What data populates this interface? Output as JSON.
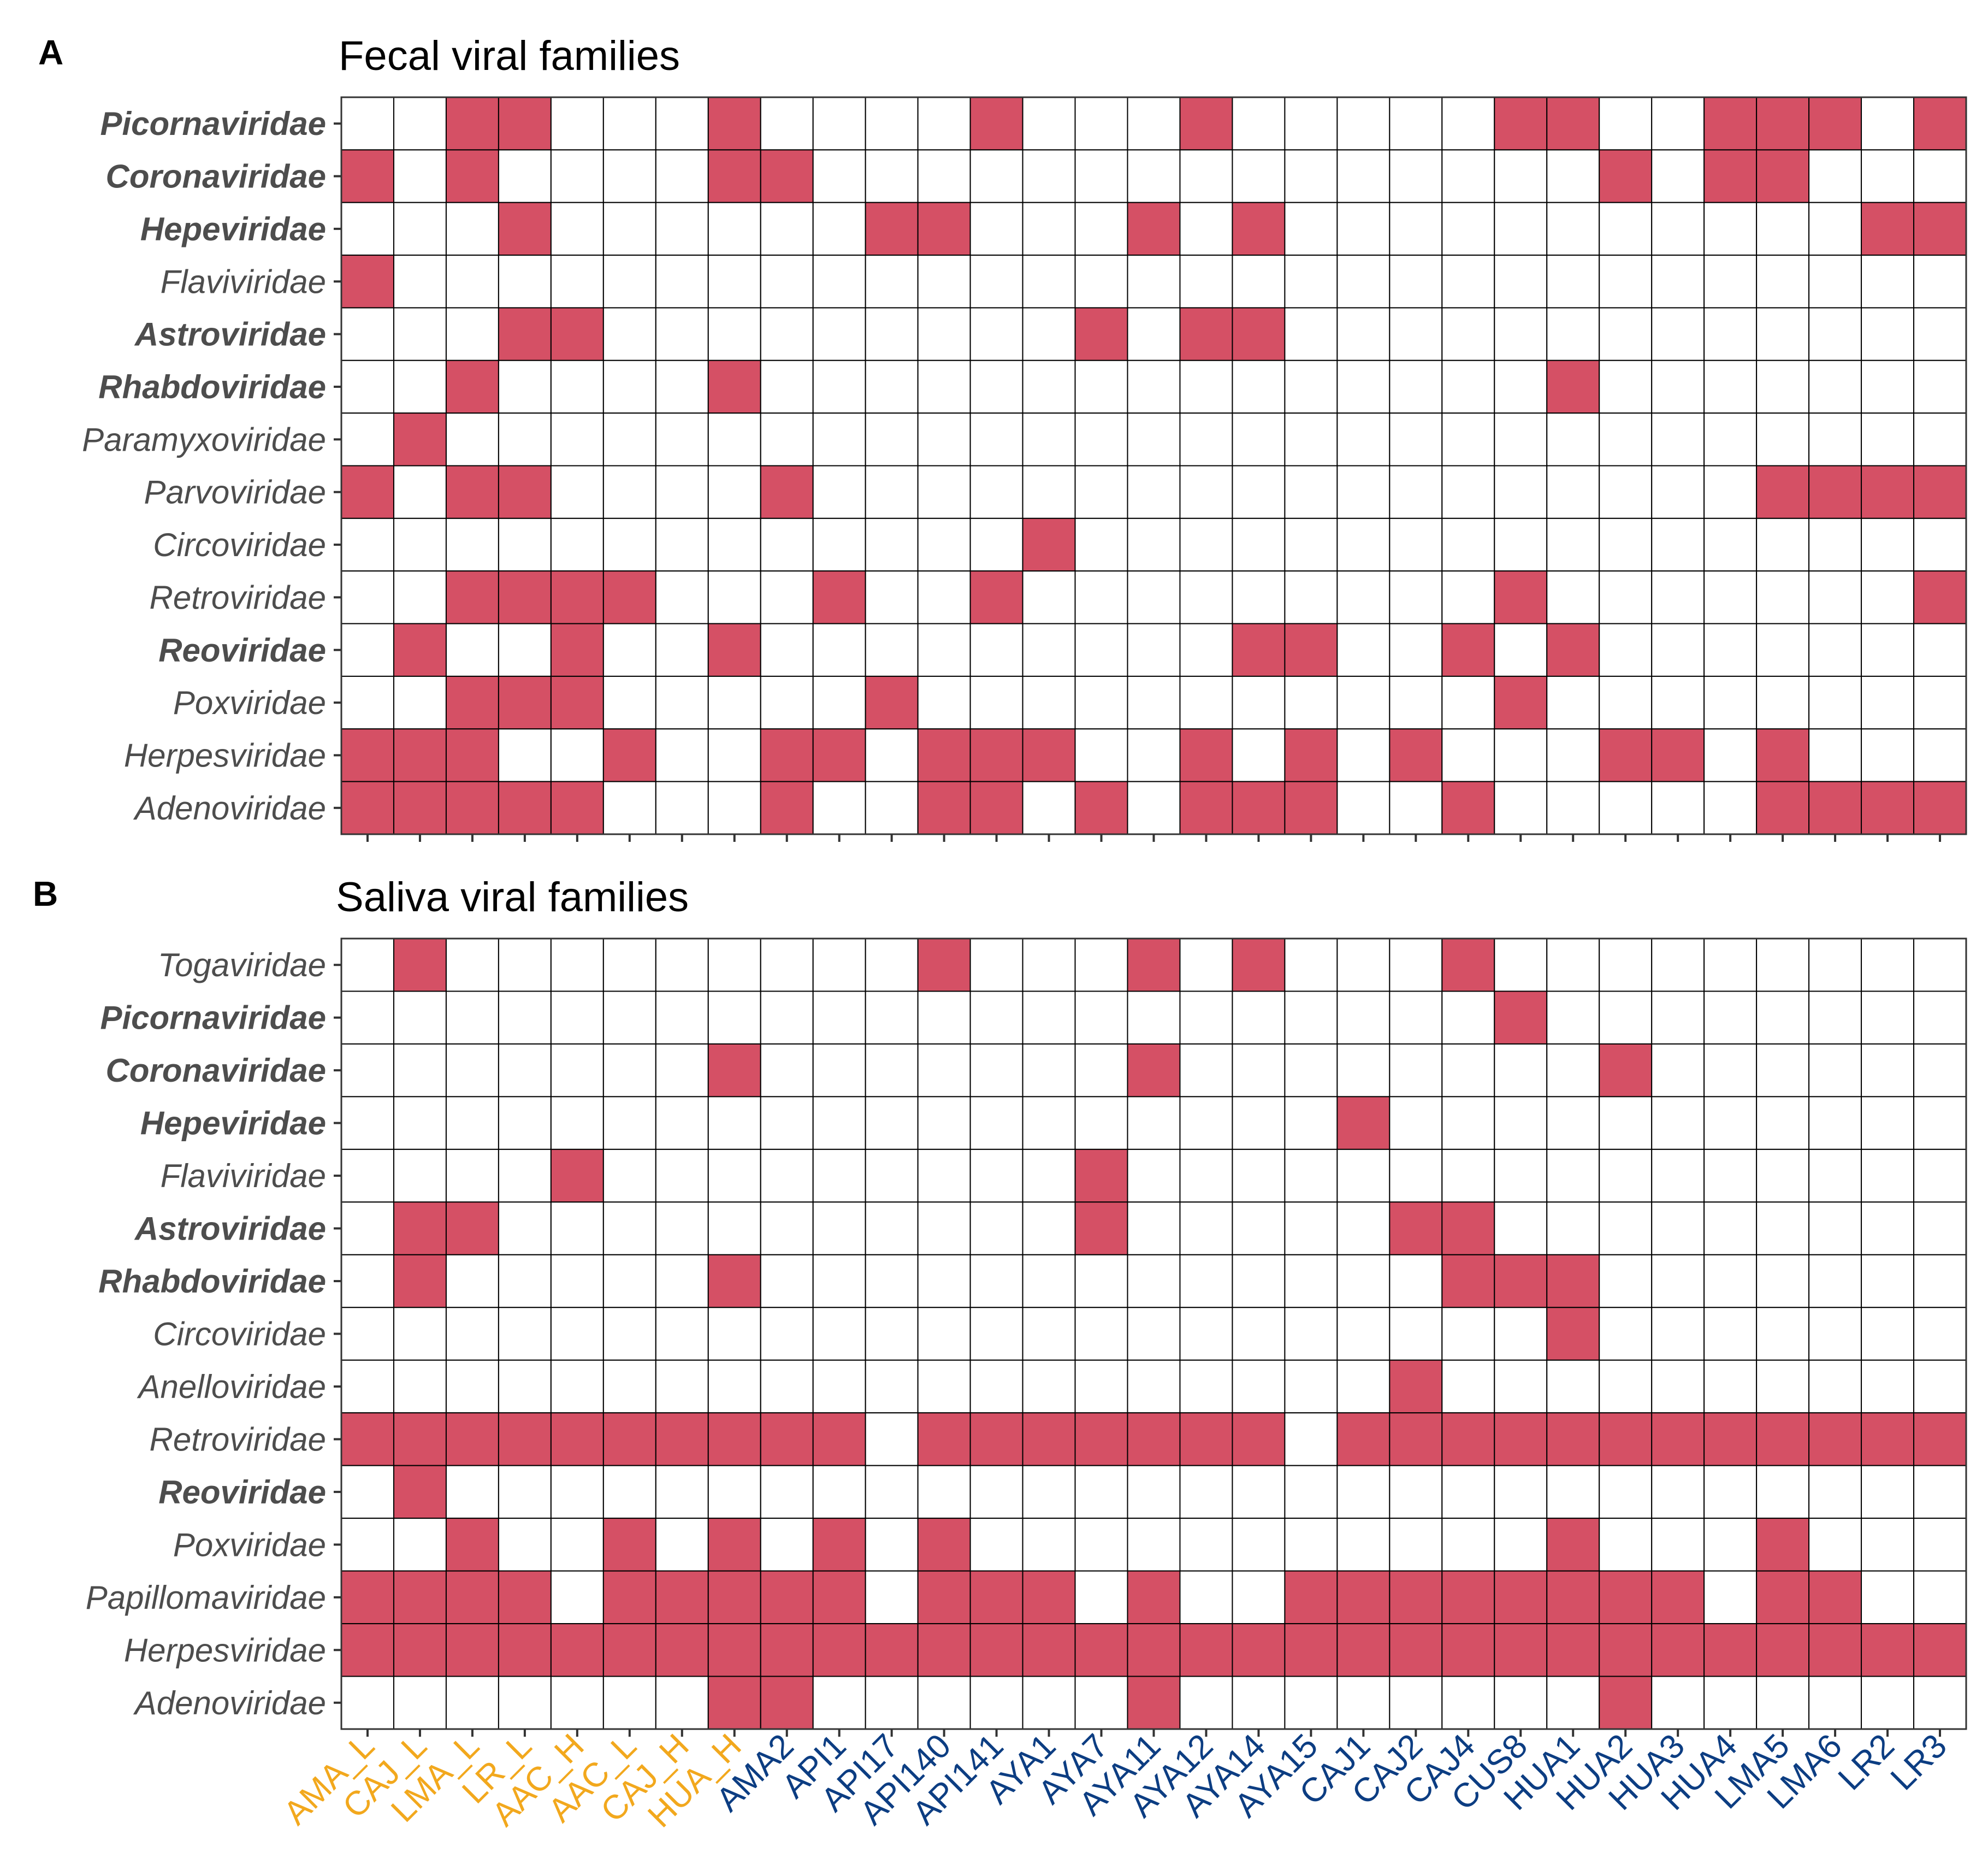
{
  "colors": {
    "present": "#d55065",
    "absent": "#ffffff",
    "group_H_L": "#f2a81d",
    "group_other": "#0c3d82"
  },
  "chart_data": [
    {
      "type": "heatmap",
      "panel": "A",
      "title": "Fecal viral families",
      "xlabel": "",
      "ylabel": "",
      "columns": [
        "AMA_L",
        "CAJ_L",
        "LMA_L",
        "LR_L",
        "AAC_H",
        "AAC_L",
        "CAJ_H",
        "HUA_H",
        "AMA2",
        "API1",
        "API17",
        "API140",
        "API141",
        "AYA1",
        "AYA7",
        "AYA11",
        "AYA12",
        "AYA14",
        "AYA15",
        "CAJ1",
        "CAJ2",
        "CAJ4",
        "CUS8",
        "HUA1",
        "HUA2",
        "HUA3",
        "HUA4",
        "LMA5",
        "LMA6",
        "LR2",
        "LR3"
      ],
      "rows": [
        {
          "name": "Picornaviridae",
          "bold": true,
          "present": [
            "LMA_L",
            "LR_L",
            "HUA_H",
            "API141",
            "AYA12",
            "CUS8",
            "HUA1",
            "HUA4",
            "LMA5",
            "LMA6",
            "LR3"
          ]
        },
        {
          "name": "Coronaviridae",
          "bold": true,
          "present": [
            "AMA_L",
            "LMA_L",
            "HUA_H",
            "AMA2",
            "HUA2",
            "HUA4",
            "LMA5"
          ]
        },
        {
          "name": "Hepeviridae",
          "bold": true,
          "present": [
            "LR_L",
            "API17",
            "API140",
            "AYA11",
            "AYA14",
            "LR2",
            "LR3"
          ]
        },
        {
          "name": "Flaviviridae",
          "bold": false,
          "present": [
            "AMA_L"
          ]
        },
        {
          "name": "Astroviridae",
          "bold": true,
          "present": [
            "LR_L",
            "AAC_H",
            "AYA7",
            "AYA12",
            "AYA14"
          ]
        },
        {
          "name": "Rhabdoviridae",
          "bold": true,
          "present": [
            "LMA_L",
            "HUA_H",
            "HUA1"
          ]
        },
        {
          "name": "Paramyxoviridae",
          "bold": false,
          "present": [
            "CAJ_L"
          ]
        },
        {
          "name": "Parvoviridae",
          "bold": false,
          "present": [
            "AMA_L",
            "LMA_L",
            "LR_L",
            "AMA2",
            "LMA5",
            "LMA6",
            "LR2",
            "LR3"
          ]
        },
        {
          "name": "Circoviridae",
          "bold": false,
          "present": [
            "AYA1"
          ]
        },
        {
          "name": "Retroviridae",
          "bold": false,
          "present": [
            "LMA_L",
            "LR_L",
            "AAC_H",
            "AAC_L",
            "API1",
            "API141",
            "CUS8",
            "LR3"
          ]
        },
        {
          "name": "Reoviridae",
          "bold": true,
          "present": [
            "CAJ_L",
            "AAC_H",
            "HUA_H",
            "AYA14",
            "AYA15",
            "CAJ4",
            "HUA1"
          ]
        },
        {
          "name": "Poxviridae",
          "bold": false,
          "present": [
            "LMA_L",
            "LR_L",
            "AAC_H",
            "API17",
            "CUS8"
          ]
        },
        {
          "name": "Herpesviridae",
          "bold": false,
          "present": [
            "AMA_L",
            "CAJ_L",
            "LMA_L",
            "AAC_L",
            "AMA2",
            "API1",
            "API140",
            "API141",
            "AYA1",
            "AYA12",
            "AYA15",
            "CAJ2",
            "HUA2",
            "HUA3",
            "LMA5"
          ]
        },
        {
          "name": "Adenoviridae",
          "bold": false,
          "present": [
            "AMA_L",
            "CAJ_L",
            "LMA_L",
            "LR_L",
            "AAC_H",
            "AMA2",
            "API140",
            "API141",
            "AYA7",
            "AYA12",
            "AYA14",
            "AYA15",
            "CAJ4",
            "LMA5",
            "LMA6",
            "LR2",
            "LR3"
          ]
        }
      ]
    },
    {
      "type": "heatmap",
      "panel": "B",
      "title": "Saliva viral families",
      "xlabel": "",
      "ylabel": "",
      "columns": [
        "AMA_L",
        "CAJ_L",
        "LMA_L",
        "LR_L",
        "AAC_H",
        "AAC_L",
        "CAJ_H",
        "HUA_H",
        "AMA2",
        "API1",
        "API17",
        "API140",
        "API141",
        "AYA1",
        "AYA7",
        "AYA11",
        "AYA12",
        "AYA14",
        "AYA15",
        "CAJ1",
        "CAJ2",
        "CAJ4",
        "CUS8",
        "HUA1",
        "HUA2",
        "HUA3",
        "HUA4",
        "LMA5",
        "LMA6",
        "LR2",
        "LR3"
      ],
      "rows": [
        {
          "name": "Togaviridae",
          "bold": false,
          "present": [
            "CAJ_L",
            "API140",
            "AYA11",
            "AYA14",
            "CAJ4"
          ]
        },
        {
          "name": "Picornaviridae",
          "bold": true,
          "present": [
            "CUS8"
          ]
        },
        {
          "name": "Coronaviridae",
          "bold": true,
          "present": [
            "HUA_H",
            "AYA11",
            "HUA2"
          ]
        },
        {
          "name": "Hepeviridae",
          "bold": true,
          "present": [
            "CAJ1"
          ]
        },
        {
          "name": "Flaviviridae",
          "bold": false,
          "present": [
            "AAC_H",
            "AYA7"
          ]
        },
        {
          "name": "Astroviridae",
          "bold": true,
          "present": [
            "CAJ_L",
            "LMA_L",
            "AYA7",
            "CAJ2",
            "CAJ4"
          ]
        },
        {
          "name": "Rhabdoviridae",
          "bold": true,
          "present": [
            "CAJ_L",
            "HUA_H",
            "CAJ4",
            "CUS8",
            "HUA1"
          ]
        },
        {
          "name": "Circoviridae",
          "bold": false,
          "present": [
            "HUA1"
          ]
        },
        {
          "name": "Anelloviridae",
          "bold": false,
          "present": [
            "CAJ2"
          ]
        },
        {
          "name": "Retroviridae",
          "bold": false,
          "present": [
            "AMA_L",
            "CAJ_L",
            "LMA_L",
            "LR_L",
            "AAC_H",
            "AAC_L",
            "CAJ_H",
            "HUA_H",
            "AMA2",
            "API1",
            "API140",
            "API141",
            "AYA1",
            "AYA7",
            "AYA11",
            "AYA12",
            "AYA14",
            "CAJ1",
            "CAJ2",
            "CAJ4",
            "CUS8",
            "HUA1",
            "HUA2",
            "HUA3",
            "HUA4",
            "LMA5",
            "LMA6",
            "LR2",
            "LR3"
          ]
        },
        {
          "name": "Reoviridae",
          "bold": true,
          "present": [
            "CAJ_L"
          ]
        },
        {
          "name": "Poxviridae",
          "bold": false,
          "present": [
            "LMA_L",
            "AAC_L",
            "HUA_H",
            "API1",
            "API140",
            "HUA1",
            "LMA5"
          ]
        },
        {
          "name": "Papillomaviridae",
          "bold": false,
          "present": [
            "AMA_L",
            "CAJ_L",
            "LMA_L",
            "LR_L",
            "AAC_L",
            "CAJ_H",
            "HUA_H",
            "AMA2",
            "API1",
            "API140",
            "API141",
            "AYA1",
            "AYA11",
            "AYA15",
            "CAJ1",
            "CAJ2",
            "CAJ4",
            "CUS8",
            "HUA1",
            "HUA2",
            "HUA3",
            "LMA5",
            "LMA6"
          ]
        },
        {
          "name": "Herpesviridae",
          "bold": false,
          "present": [
            "AMA_L",
            "CAJ_L",
            "LMA_L",
            "LR_L",
            "AAC_H",
            "AAC_L",
            "CAJ_H",
            "HUA_H",
            "AMA2",
            "API1",
            "API17",
            "API140",
            "API141",
            "AYA1",
            "AYA7",
            "AYA11",
            "AYA12",
            "AYA14",
            "AYA15",
            "CAJ1",
            "CAJ2",
            "CAJ4",
            "CUS8",
            "HUA1",
            "HUA2",
            "HUA3",
            "HUA4",
            "LMA5",
            "LMA6",
            "LR2",
            "LR3"
          ]
        },
        {
          "name": "Adenoviridae",
          "bold": false,
          "present": [
            "HUA_H",
            "AMA2",
            "AYA11",
            "HUA2"
          ]
        }
      ]
    }
  ],
  "x_axis": {
    "labels": [
      "AMA_L",
      "CAJ_L",
      "LMA_L",
      "LR_L",
      "AAC_H",
      "AAC_L",
      "CAJ_H",
      "HUA_H",
      "AMA2",
      "API1",
      "API17",
      "API140",
      "API141",
      "AYA1",
      "AYA7",
      "AYA11",
      "AYA12",
      "AYA14",
      "AYA15",
      "CAJ1",
      "CAJ2",
      "CAJ4",
      "CUS8",
      "HUA1",
      "HUA2",
      "HUA3",
      "HUA4",
      "LMA5",
      "LMA6",
      "LR2",
      "LR3"
    ],
    "highlighted_labels": [
      "AMA_L",
      "CAJ_L",
      "LMA_L",
      "LR_L",
      "AAC_H",
      "AAC_L",
      "CAJ_H",
      "HUA_H"
    ]
  }
}
